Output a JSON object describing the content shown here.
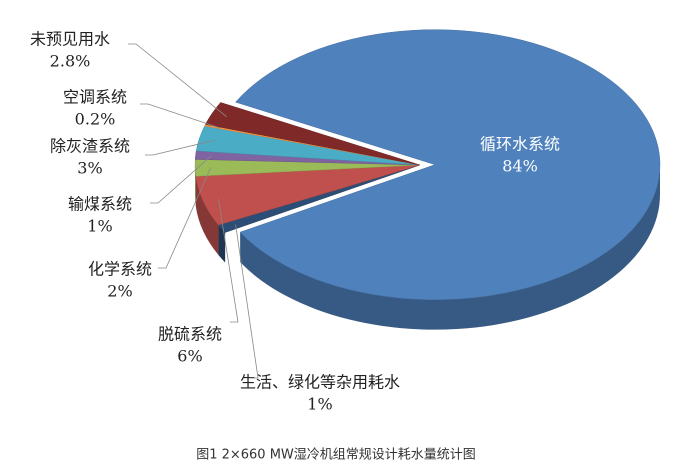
{
  "chart_data": {
    "type": "pie3d",
    "title": "图1 2×660 MW湿冷机组常规设计耗水量统计图",
    "categories": [
      "循环水系统",
      "生活、绿化等杂用耗水",
      "脱硫系统",
      "化学系统",
      "输煤系统",
      "除灰渣系统",
      "空调系统",
      "未预见用水"
    ],
    "values": [
      84,
      1,
      6,
      2,
      1,
      3,
      0.2,
      2.8
    ],
    "value_labels": [
      "84%",
      "1%",
      "6%",
      "2%",
      "1%",
      "3%",
      "0.2%",
      "2.8%"
    ],
    "colors": [
      "#4f81bd",
      "#2c4d75",
      "#c0504d",
      "#9bbb59",
      "#8064a2",
      "#4bacc6",
      "#f79646",
      "#7f2a28"
    ]
  }
}
